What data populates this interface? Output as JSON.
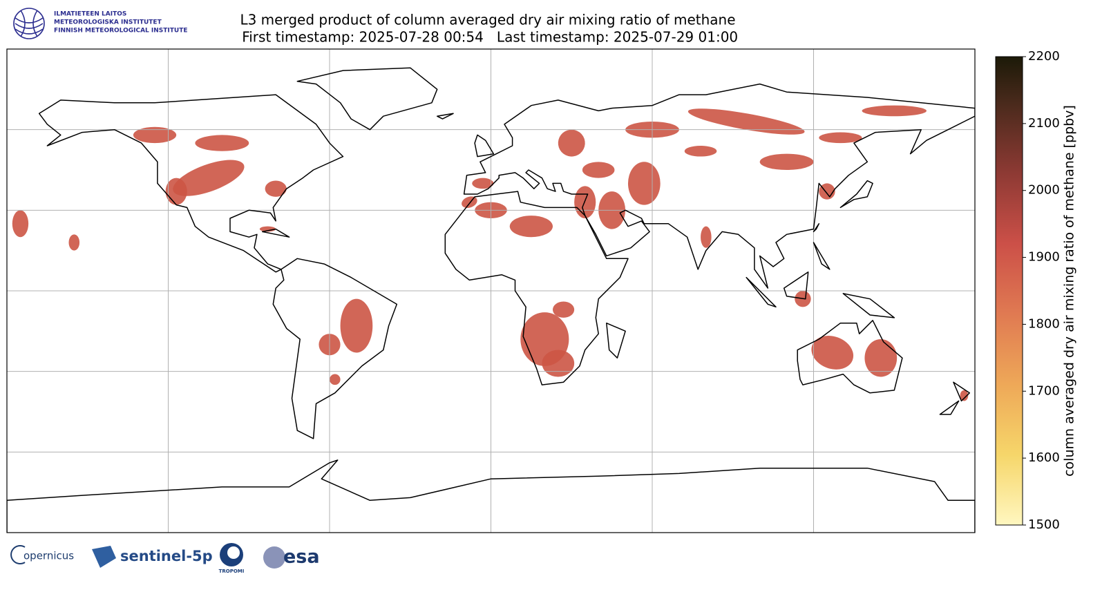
{
  "header": {
    "logo_lines": [
      "ILMATIETEEN LAITOS",
      "METEOROLOGISKA INSTITUTET",
      "FINNISH METEOROLOGICAL INSTITUTE"
    ]
  },
  "map": {
    "title": "L3 merged product of column averaged dry air mixing ratio of methane",
    "subtitle": " First timestamp: 2025-07-28 00:54   Last timestamp: 2025-07-29 01:00",
    "colorbar": {
      "label": "column averaged dry air mixing ratio of methane [ppbv]",
      "lim": [
        1500,
        2200
      ],
      "ticks": [
        1500,
        1600,
        1700,
        1800,
        1900,
        2000,
        2100,
        2200
      ]
    }
  },
  "footer": {
    "logos": [
      "opernicus",
      "sentinel-5p",
      "TROPOMI",
      "esa"
    ]
  }
}
